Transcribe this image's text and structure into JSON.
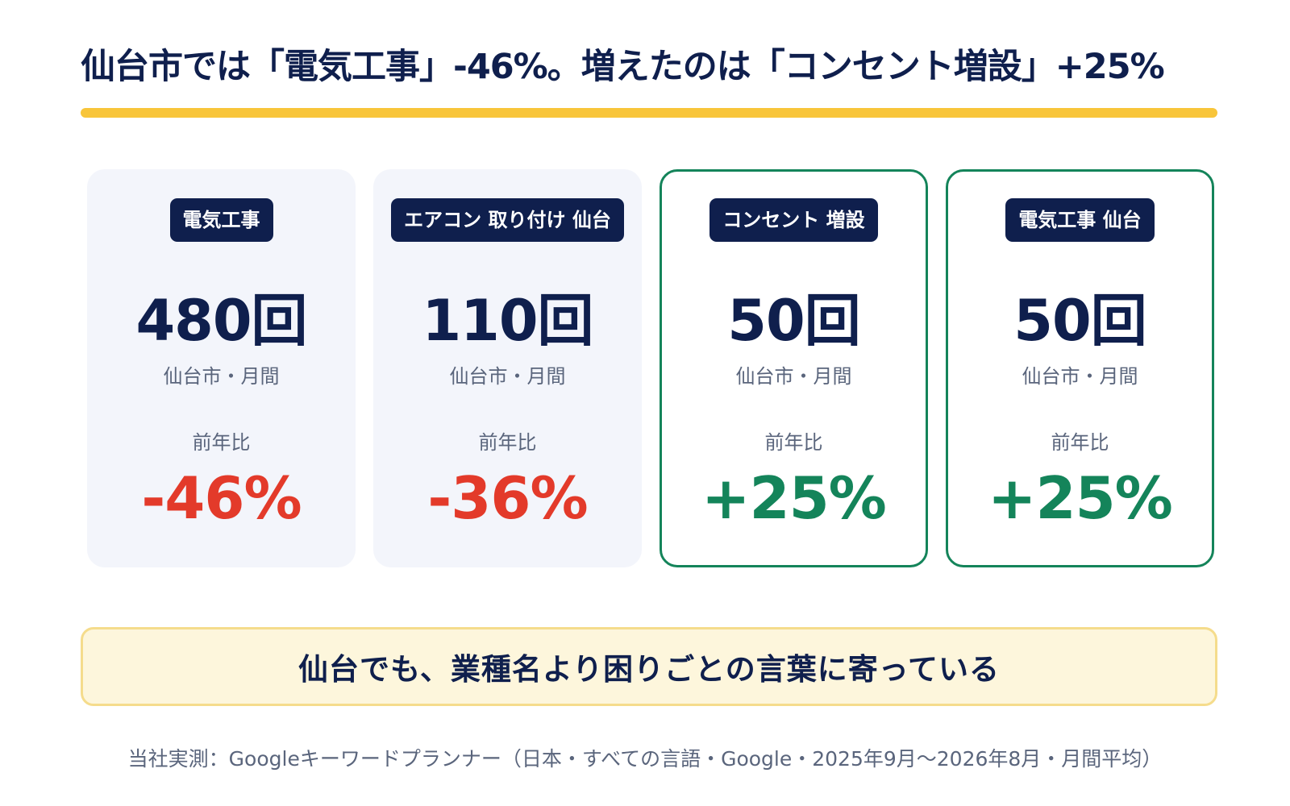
{
  "headline": "仙台市では「電気工事」-46%。増えたのは「コンセント増設」+25%",
  "colors": {
    "navy": "#0f1f4d",
    "accent_yellow": "#f8c53a",
    "decline_red": "#e33a2a",
    "growth_green": "#14845a"
  },
  "cards": [
    {
      "keyword": "電気工事",
      "count": "480回",
      "scope": "仙台市・月間",
      "yoy_label": "前年比",
      "change": "-46%"
    },
    {
      "keyword": "エアコン 取り付け 仙台",
      "count": "110回",
      "scope": "仙台市・月間",
      "yoy_label": "前年比",
      "change": "-36%"
    },
    {
      "keyword": "コンセント 増設",
      "count": "50回",
      "scope": "仙台市・月間",
      "yoy_label": "前年比",
      "change": "+25%"
    },
    {
      "keyword": "電気工事 仙台",
      "count": "50回",
      "scope": "仙台市・月間",
      "yoy_label": "前年比",
      "change": "+25%"
    }
  ],
  "banner": "仙台でも、業種名より困りごとの言葉に寄っている",
  "source": "当社実測：Googleキーワードプランナー（日本・すべての言語・Google・2025年9月〜2026年8月・月間平均）"
}
